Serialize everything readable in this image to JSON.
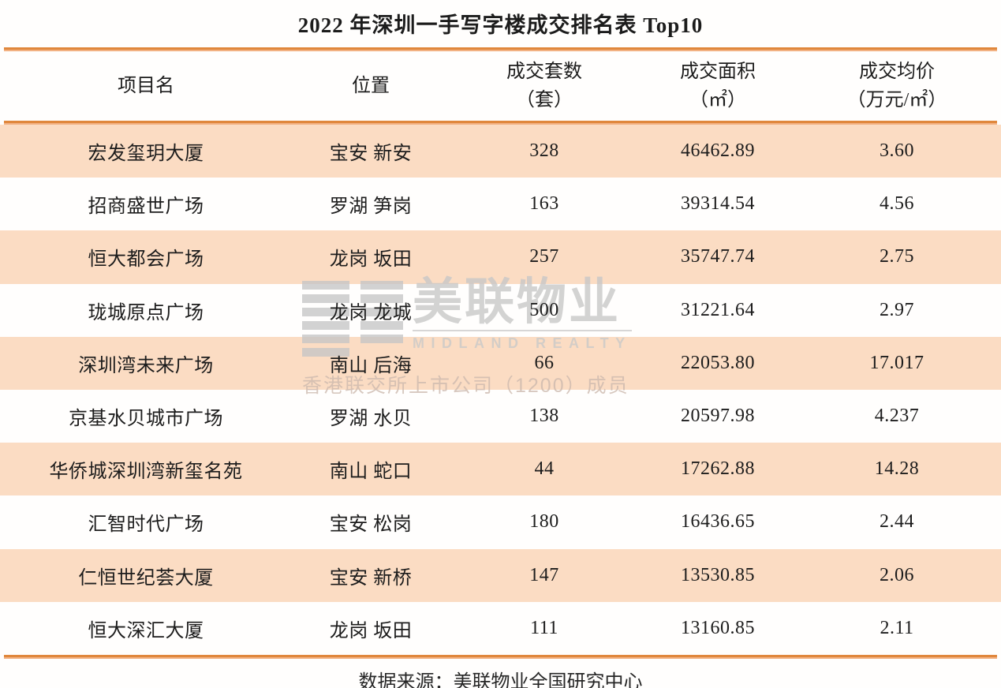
{
  "title": "2022 年深圳一手写字楼成交排名表 Top10",
  "table": {
    "columns": [
      {
        "label": "项目名",
        "sub": ""
      },
      {
        "label": "位置",
        "sub": ""
      },
      {
        "label": "成交套数",
        "sub": "（套）"
      },
      {
        "label": "成交面积",
        "sub": "（㎡）"
      },
      {
        "label": "成交均价",
        "sub": "（万元/㎡）"
      }
    ],
    "rows": [
      {
        "project": "宏发玺玥大厦",
        "location": "宝安 新安",
        "units": "328",
        "area": "46462.89",
        "avg_price": "3.60"
      },
      {
        "project": "招商盛世广场",
        "location": "罗湖 笋岗",
        "units": "163",
        "area": "39314.54",
        "avg_price": "4.56"
      },
      {
        "project": "恒大都会广场",
        "location": "龙岗 坂田",
        "units": "257",
        "area": "35747.74",
        "avg_price": "2.75"
      },
      {
        "project": "珑城原点广场",
        "location": "龙岗 龙城",
        "units": "500",
        "area": "31221.64",
        "avg_price": "2.97"
      },
      {
        "project": "深圳湾未来广场",
        "location": "南山 后海",
        "units": "66",
        "area": "22053.80",
        "avg_price": "17.017"
      },
      {
        "project": "京基水贝城市广场",
        "location": "罗湖 水贝",
        "units": "138",
        "area": "20597.98",
        "avg_price": "4.237"
      },
      {
        "project": "华侨城深圳湾新玺名苑",
        "location": "南山 蛇口",
        "units": "44",
        "area": "17262.88",
        "avg_price": "14.28"
      },
      {
        "project": "汇智时代广场",
        "location": "宝安 松岗",
        "units": "180",
        "area": "16436.65",
        "avg_price": "2.44"
      },
      {
        "project": "仁恒世纪荟大厦",
        "location": "宝安 新桥",
        "units": "147",
        "area": "13530.85",
        "avg_price": "2.06"
      },
      {
        "project": "恒大深汇大厦",
        "location": "龙岗 坂田",
        "units": "111",
        "area": "13160.85",
        "avg_price": "2.11"
      }
    ]
  },
  "watermark": {
    "name_cn": "美联物业",
    "name_en": "MIDLAND REALTY",
    "tagline": "香港联交所上市公司（1200）成员"
  },
  "footer": {
    "source": "数据来源：美联物业全国研究中心"
  },
  "colors": {
    "rule_orange": "#e0873c",
    "rule_orange_light": "#f2b182",
    "row_highlight": "#fbdcc3",
    "watermark_gray": "#c8c8c8",
    "text": "#1c1c1c"
  }
}
